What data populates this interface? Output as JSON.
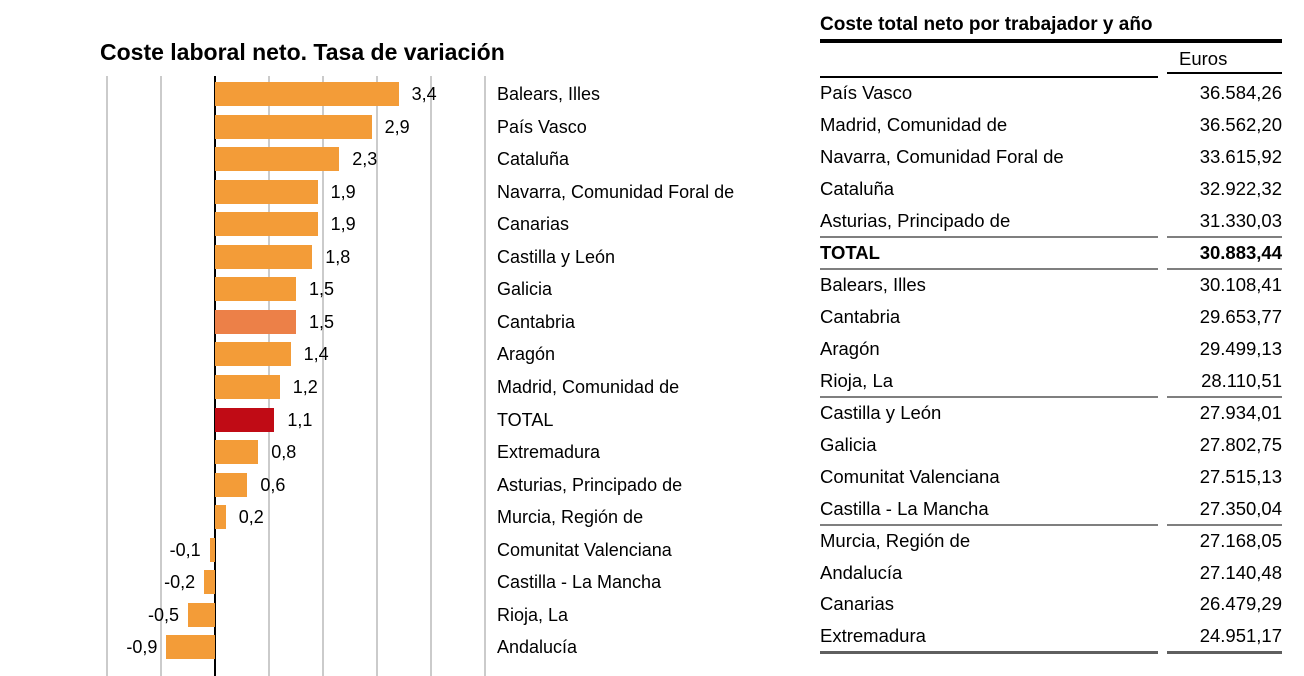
{
  "colors": {
    "bar_orange": "#F39C38",
    "bar_salmon": "#EC8048",
    "bar_red": "#C00B15",
    "gridline": "#CBCBCB",
    "axis": "#000000",
    "separator": "#7F7F7F"
  },
  "chart": {
    "title": "Coste laboral neto. Tasa de variación"
  },
  "chart_data": {
    "type": "bar",
    "orientation": "horizontal",
    "title": "Coste laboral neto. Tasa de variación",
    "xlim": [
      -2,
      5
    ],
    "gridline_step": 1,
    "grid": "vertical",
    "categories": [
      "Balears, Illes",
      "País Vasco",
      "Cataluña",
      "Navarra, Comunidad Foral de",
      "Canarias",
      "Castilla y León",
      "Galicia",
      "Cantabria",
      "Aragón",
      "Madrid, Comunidad de",
      "TOTAL",
      "Extremadura",
      "Asturias, Principado de",
      "Murcia, Región de",
      "Comunitat Valenciana",
      "Castilla - La Mancha",
      "Rioja, La",
      "Andalucía"
    ],
    "values": [
      3.4,
      2.9,
      2.3,
      1.9,
      1.9,
      1.8,
      1.5,
      1.5,
      1.4,
      1.2,
      1.1,
      0.8,
      0.6,
      0.2,
      -0.1,
      -0.2,
      -0.5,
      -0.9
    ],
    "display_values": [
      "3,4",
      "2,9",
      "2,3",
      "1,9",
      "1,9",
      "1,8",
      "1,5",
      "1,5",
      "1,4",
      "1,2",
      "1,1",
      "0,8",
      "0,6",
      "0,2",
      "-0,1",
      "-0,2",
      "-0,5",
      "-0,9"
    ],
    "highlights": [
      {
        "index": 7,
        "category": "Cantabria",
        "color": "#EC8048"
      },
      {
        "index": 10,
        "category": "TOTAL",
        "color": "#C00B15"
      }
    ]
  },
  "table": {
    "title": "Coste total neto por trabajador y año",
    "column_header": "Euros",
    "groups": [
      {
        "rows": [
          {
            "label": "País Vasco",
            "value": "36.584,26"
          },
          {
            "label": "Madrid, Comunidad de",
            "value": "36.562,20"
          },
          {
            "label": "Navarra, Comunidad Foral de",
            "value": "33.615,92"
          },
          {
            "label": "Cataluña",
            "value": "32.922,32"
          },
          {
            "label": "Asturias, Principado de",
            "value": "31.330,03"
          }
        ]
      },
      {
        "rows": [
          {
            "label": "TOTAL",
            "value": "30.883,44",
            "bold": true
          }
        ]
      },
      {
        "rows": [
          {
            "label": "Balears, Illes",
            "value": "30.108,41"
          },
          {
            "label": "Cantabria",
            "value": "29.653,77"
          },
          {
            "label": "Aragón",
            "value": "29.499,13"
          },
          {
            "label": "Rioja, La",
            "value": "28.110,51"
          }
        ]
      },
      {
        "rows": [
          {
            "label": "Castilla y León",
            "value": "27.934,01"
          },
          {
            "label": "Galicia",
            "value": "27.802,75"
          },
          {
            "label": "Comunitat Valenciana",
            "value": "27.515,13"
          },
          {
            "label": "Castilla - La Mancha",
            "value": "27.350,04"
          }
        ]
      },
      {
        "rows": [
          {
            "label": "Murcia, Región de",
            "value": "27.168,05"
          },
          {
            "label": "Andalucía",
            "value": "27.140,48"
          },
          {
            "label": "Canarias",
            "value": "26.479,29"
          },
          {
            "label": "Extremadura",
            "value": "24.951,17"
          }
        ]
      }
    ]
  }
}
